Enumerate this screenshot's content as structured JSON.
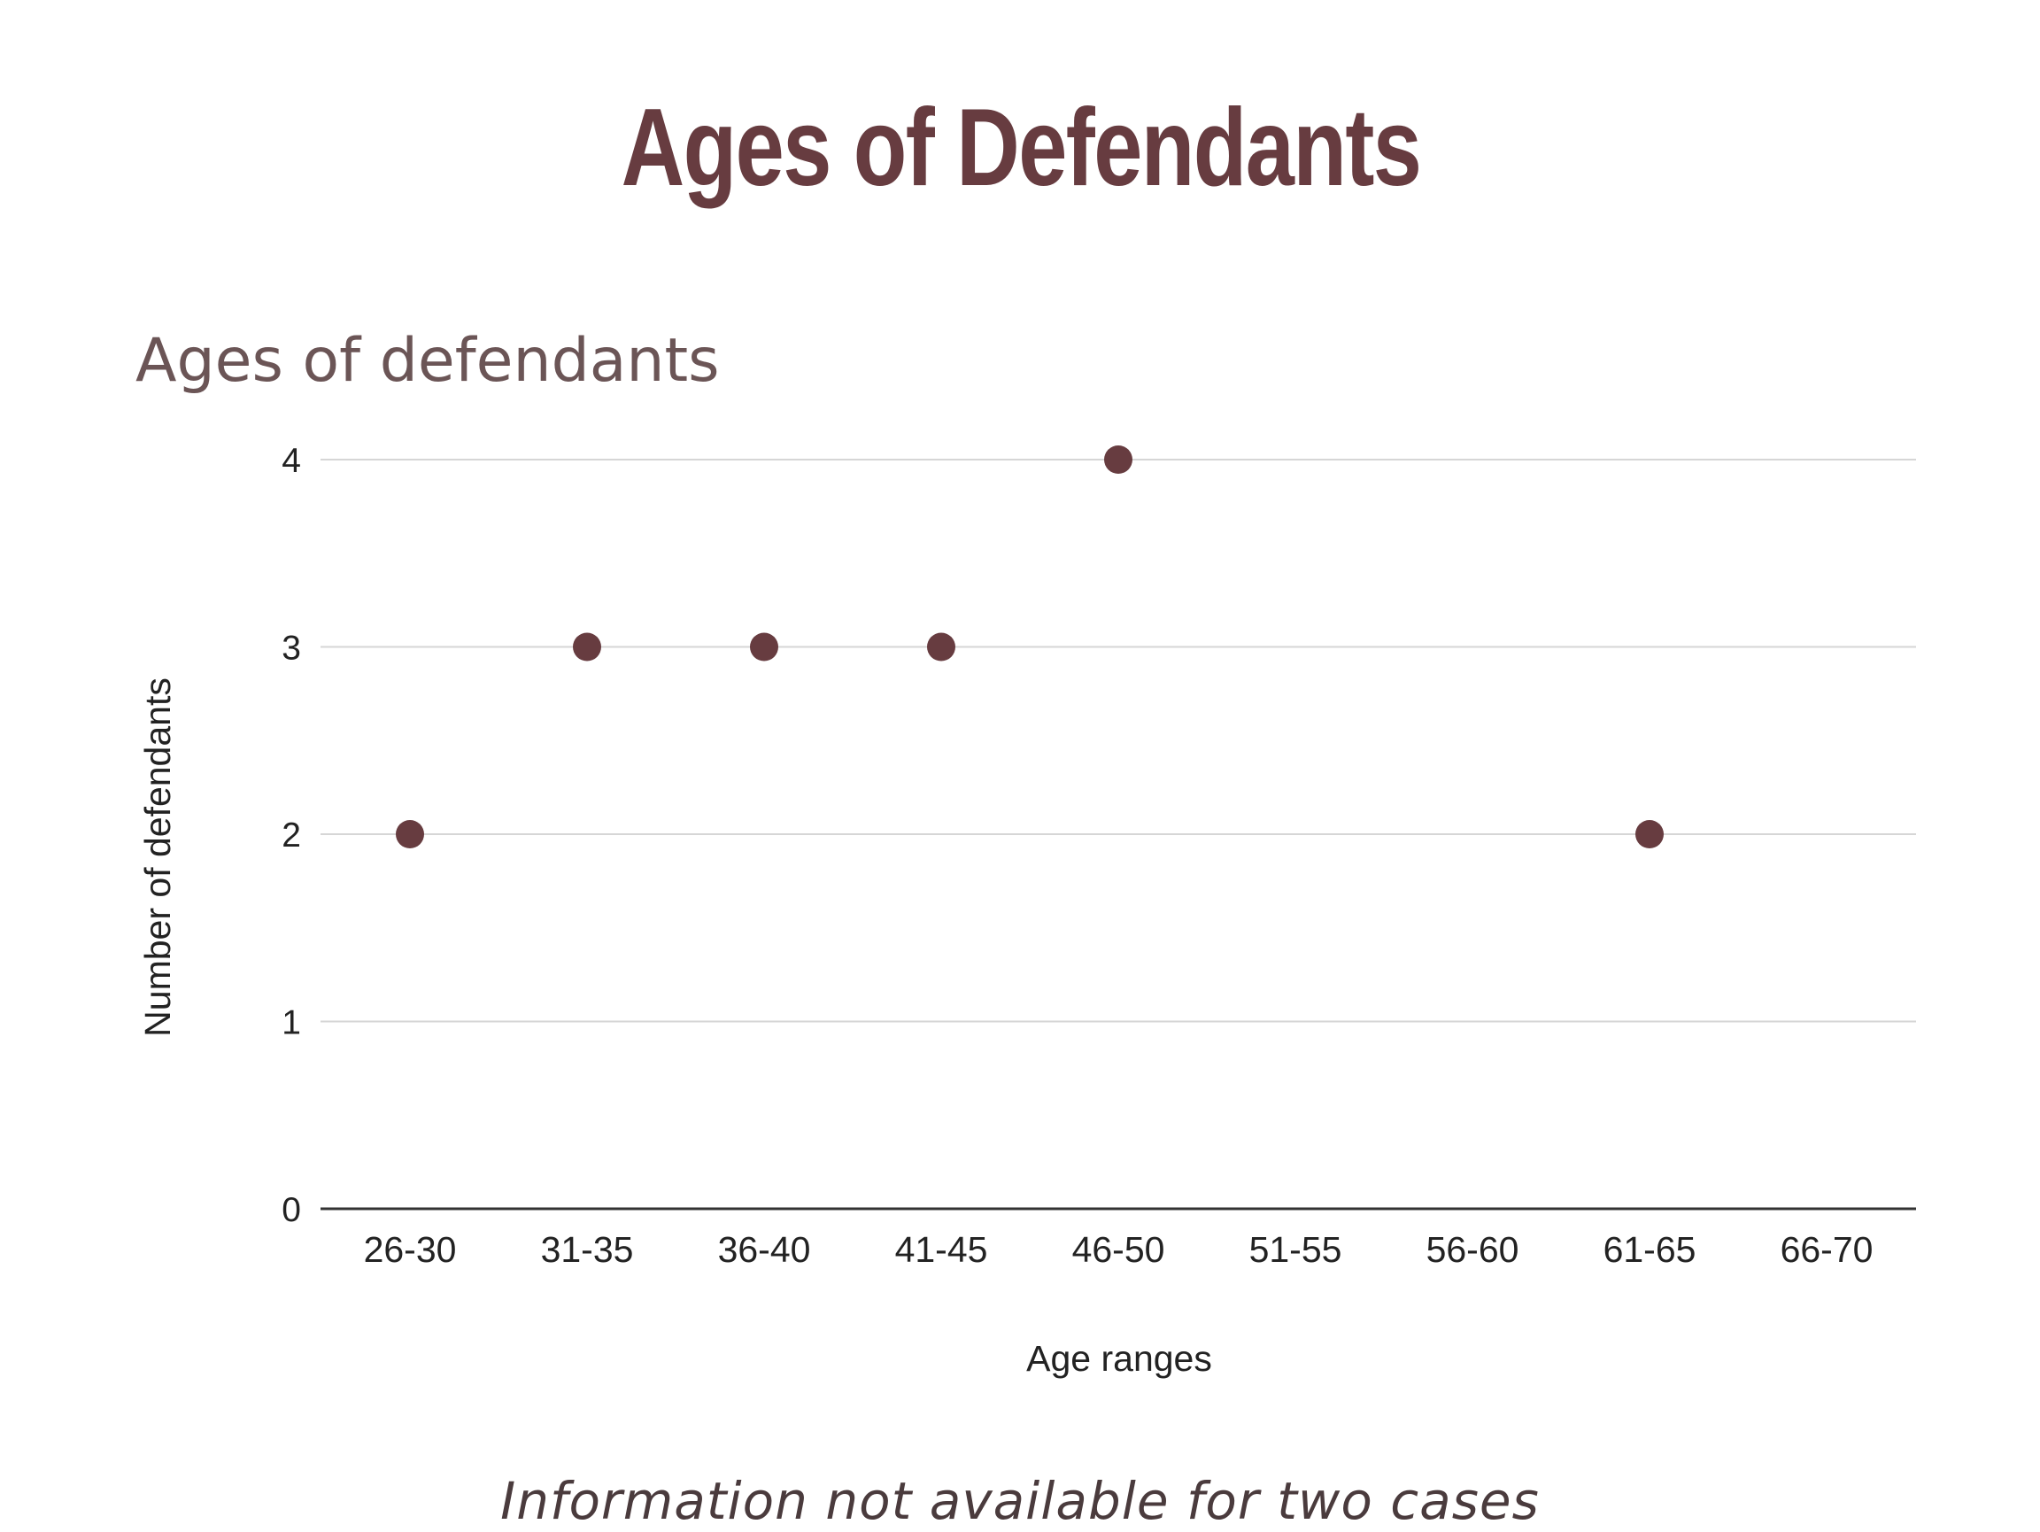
{
  "header": {
    "title": "Ages of Defendants"
  },
  "footer": {
    "note": "Information not available for two cases"
  },
  "colors": {
    "brand": "#673c40",
    "point": "#673c40",
    "chart_title": "#6b5556",
    "grid": "#d6d6d6",
    "axis": "#333333",
    "text": "#222222"
  },
  "chart_data": {
    "type": "scatter",
    "title": "Ages of defendants",
    "xlabel": "Age ranges",
    "ylabel": "Number of defendants",
    "categories": [
      "26-30",
      "31-35",
      "36-40",
      "41-45",
      "46-50",
      "51-55",
      "56-60",
      "61-65",
      "66-70"
    ],
    "points": [
      {
        "x": "26-30",
        "y": 2
      },
      {
        "x": "31-35",
        "y": 3
      },
      {
        "x": "36-40",
        "y": 3
      },
      {
        "x": "41-45",
        "y": 3
      },
      {
        "x": "46-50",
        "y": 4
      },
      {
        "x": "61-65",
        "y": 2
      }
    ],
    "ylim": [
      0,
      4
    ],
    "yticks": [
      0,
      1,
      2,
      3,
      4
    ],
    "grid": true,
    "legend": "none"
  }
}
